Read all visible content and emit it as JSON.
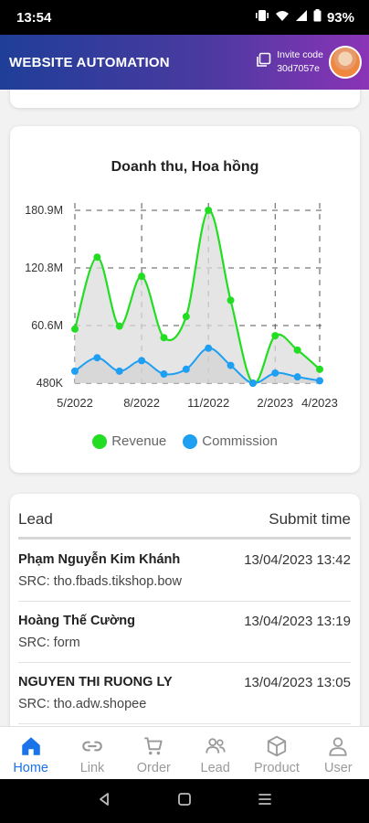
{
  "status_bar": {
    "time": "13:54",
    "battery": "93%"
  },
  "header": {
    "title": "WEBSITE AUTOMATION",
    "invite_label": "Invite code",
    "invite_code": "30d7057e"
  },
  "colors": {
    "revenue": "#22dd22",
    "commission": "#1e9ff2",
    "active_nav": "#1a73e8"
  },
  "chart": {
    "title": "Doanh thu, Hoa hồng",
    "legend": {
      "revenue": "Revenue",
      "commission": "Commission"
    },
    "y_ticks": [
      "480K",
      "60.6M",
      "120.8M",
      "180.9M"
    ],
    "x_ticks": [
      "5/2022",
      "8/2022",
      "11/2022",
      "2/2023",
      "4/2023"
    ]
  },
  "chart_data": {
    "type": "area",
    "title": "Doanh thu, Hoa hồng",
    "x": [
      "5/2022",
      "6/2022",
      "7/2022",
      "8/2022",
      "9/2022",
      "10/2022",
      "11/2022",
      "12/2022",
      "1/2023",
      "2/2023",
      "3/2023",
      "4/2023"
    ],
    "series": [
      {
        "name": "Revenue",
        "values": [
          57,
          132,
          60,
          112,
          48,
          70,
          180.9,
          87,
          0.48,
          50,
          35,
          15
        ]
      },
      {
        "name": "Commission",
        "values": [
          13,
          27,
          13,
          24,
          10,
          15,
          37,
          19,
          0.48,
          11,
          7,
          3
        ]
      }
    ],
    "x_tick_labels": [
      "5/2022",
      "8/2022",
      "11/2022",
      "2/2023",
      "4/2023"
    ],
    "y_tick_labels": [
      "480K",
      "60.6M",
      "120.8M",
      "180.9M"
    ],
    "ylim": [
      0.48,
      180.9
    ],
    "grid": true,
    "legend": "bottom"
  },
  "leads": {
    "header_lead": "Lead",
    "header_time": "Submit time",
    "rows": [
      {
        "name": "Phạm Nguyễn Kim Khánh",
        "time": "13/04/2023 13:42",
        "src": "SRC: tho.fbads.tikshop.bow"
      },
      {
        "name": "Hoàng Thế Cường",
        "time": "13/04/2023 13:19",
        "src": "SRC: form"
      },
      {
        "name": "NGUYEN THI RUONG LY",
        "time": "13/04/2023 13:05",
        "src": "SRC: tho.adw.shopee"
      }
    ]
  },
  "nav": {
    "home": "Home",
    "link": "Link",
    "order": "Order",
    "lead": "Lead",
    "product": "Product",
    "user": "User",
    "active": "Home"
  }
}
